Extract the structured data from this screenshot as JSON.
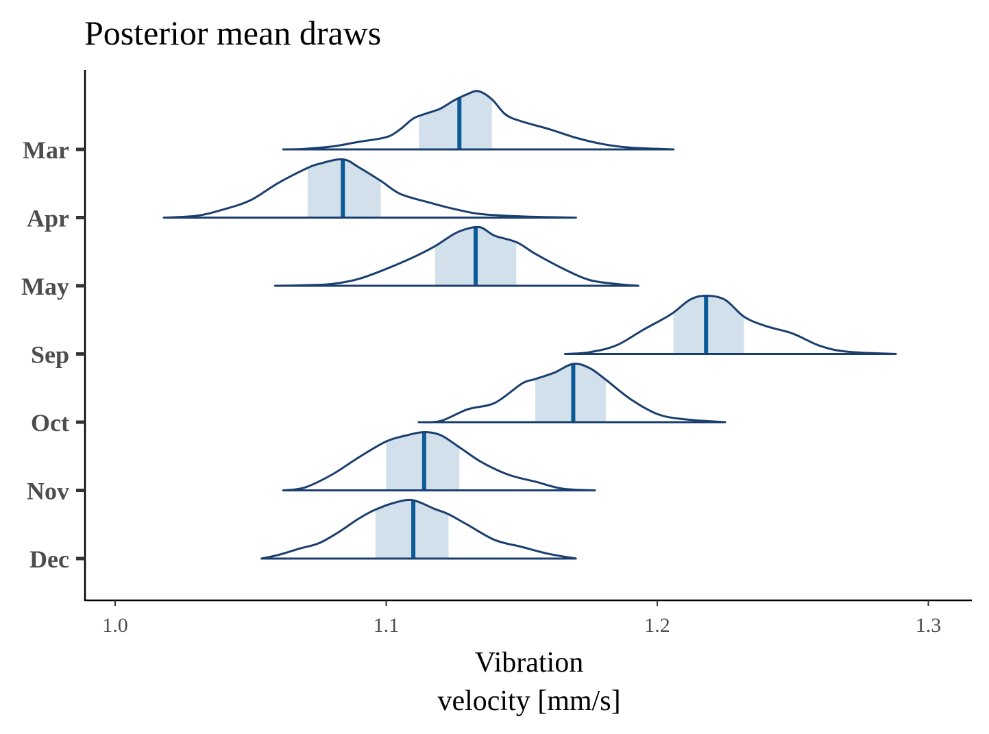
{
  "chart_data": {
    "type": "ridgeline",
    "title": "Posterior mean draws",
    "xlabel": [
      "Vibration",
      "velocity [mm/s]"
    ],
    "ylabel": "",
    "xlim": [
      0.989,
      1.315
    ],
    "xticks": [
      1.0,
      1.1,
      1.2,
      1.3
    ],
    "xtick_labels": [
      "1.0",
      "1.1",
      "1.2",
      "1.3"
    ],
    "grid": false,
    "legend": "none",
    "colors": {
      "outline": "#1a3f6e",
      "interval_fill": "#d1e0eb",
      "median": "#0b5b99",
      "axis": "#000000",
      "tick_label": "#4d4d4d"
    },
    "series": [
      {
        "name": "Mar",
        "x_min": 1.062,
        "x_max": 1.206,
        "median": 1.127,
        "interval": [
          1.112,
          1.139
        ],
        "density": [
          [
            1.062,
            0.0
          ],
          [
            1.07,
            0.01
          ],
          [
            1.08,
            0.05
          ],
          [
            1.09,
            0.13
          ],
          [
            1.1,
            0.21
          ],
          [
            1.105,
            0.34
          ],
          [
            1.11,
            0.53
          ],
          [
            1.115,
            0.62
          ],
          [
            1.12,
            0.7
          ],
          [
            1.125,
            0.84
          ],
          [
            1.13,
            0.95
          ],
          [
            1.134,
            1.0
          ],
          [
            1.139,
            0.86
          ],
          [
            1.144,
            0.6
          ],
          [
            1.15,
            0.48
          ],
          [
            1.16,
            0.35
          ],
          [
            1.17,
            0.2
          ],
          [
            1.18,
            0.09
          ],
          [
            1.19,
            0.03
          ],
          [
            1.206,
            0.0
          ]
        ]
      },
      {
        "name": "Apr",
        "x_min": 1.018,
        "x_max": 1.17,
        "median": 1.084,
        "interval": [
          1.071,
          1.098
        ],
        "density": [
          [
            1.018,
            0.0
          ],
          [
            1.03,
            0.03
          ],
          [
            1.04,
            0.14
          ],
          [
            1.05,
            0.3
          ],
          [
            1.06,
            0.59
          ],
          [
            1.07,
            0.83
          ],
          [
            1.075,
            0.92
          ],
          [
            1.084,
            1.0
          ],
          [
            1.09,
            0.86
          ],
          [
            1.098,
            0.63
          ],
          [
            1.105,
            0.41
          ],
          [
            1.115,
            0.27
          ],
          [
            1.125,
            0.15
          ],
          [
            1.135,
            0.06
          ],
          [
            1.15,
            0.02
          ],
          [
            1.17,
            0.0
          ]
        ]
      },
      {
        "name": "May",
        "x_min": 1.059,
        "x_max": 1.193,
        "median": 1.133,
        "interval": [
          1.118,
          1.148
        ],
        "density": [
          [
            1.059,
            0.0
          ],
          [
            1.07,
            0.01
          ],
          [
            1.08,
            0.03
          ],
          [
            1.09,
            0.12
          ],
          [
            1.1,
            0.29
          ],
          [
            1.11,
            0.49
          ],
          [
            1.118,
            0.68
          ],
          [
            1.125,
            0.89
          ],
          [
            1.13,
            0.98
          ],
          [
            1.135,
            1.0
          ],
          [
            1.14,
            0.86
          ],
          [
            1.148,
            0.75
          ],
          [
            1.155,
            0.55
          ],
          [
            1.165,
            0.3
          ],
          [
            1.175,
            0.1
          ],
          [
            1.185,
            0.03
          ],
          [
            1.193,
            0.0
          ]
        ]
      },
      {
        "name": "Sep",
        "x_min": 1.166,
        "x_max": 1.288,
        "median": 1.218,
        "interval": [
          1.206,
          1.232
        ],
        "density": [
          [
            1.166,
            0.0
          ],
          [
            1.175,
            0.03
          ],
          [
            1.185,
            0.15
          ],
          [
            1.195,
            0.42
          ],
          [
            1.205,
            0.68
          ],
          [
            1.212,
            0.93
          ],
          [
            1.218,
            1.0
          ],
          [
            1.225,
            0.93
          ],
          [
            1.232,
            0.64
          ],
          [
            1.24,
            0.48
          ],
          [
            1.25,
            0.35
          ],
          [
            1.26,
            0.14
          ],
          [
            1.27,
            0.04
          ],
          [
            1.288,
            0.0
          ]
        ]
      },
      {
        "name": "Oct",
        "x_min": 1.112,
        "x_max": 1.225,
        "median": 1.169,
        "interval": [
          1.155,
          1.181
        ],
        "density": [
          [
            1.112,
            0.0
          ],
          [
            1.12,
            0.02
          ],
          [
            1.13,
            0.22
          ],
          [
            1.14,
            0.33
          ],
          [
            1.15,
            0.66
          ],
          [
            1.155,
            0.74
          ],
          [
            1.162,
            0.85
          ],
          [
            1.169,
            1.0
          ],
          [
            1.175,
            0.93
          ],
          [
            1.181,
            0.73
          ],
          [
            1.19,
            0.4
          ],
          [
            1.2,
            0.14
          ],
          [
            1.21,
            0.05
          ],
          [
            1.225,
            0.0
          ]
        ]
      },
      {
        "name": "Nov",
        "x_min": 1.062,
        "x_max": 1.177,
        "median": 1.114,
        "interval": [
          1.1,
          1.127
        ],
        "density": [
          [
            1.062,
            0.0
          ],
          [
            1.07,
            0.05
          ],
          [
            1.08,
            0.27
          ],
          [
            1.09,
            0.57
          ],
          [
            1.1,
            0.84
          ],
          [
            1.108,
            0.95
          ],
          [
            1.114,
            1.0
          ],
          [
            1.12,
            0.95
          ],
          [
            1.127,
            0.74
          ],
          [
            1.135,
            0.49
          ],
          [
            1.145,
            0.27
          ],
          [
            1.155,
            0.15
          ],
          [
            1.165,
            0.03
          ],
          [
            1.177,
            0.0
          ]
        ]
      },
      {
        "name": "Dec",
        "x_min": 1.054,
        "x_max": 1.17,
        "median": 1.11,
        "interval": [
          1.096,
          1.123
        ],
        "density": [
          [
            1.054,
            0.0
          ],
          [
            1.06,
            0.06
          ],
          [
            1.068,
            0.17
          ],
          [
            1.075,
            0.26
          ],
          [
            1.082,
            0.44
          ],
          [
            1.09,
            0.69
          ],
          [
            1.096,
            0.84
          ],
          [
            1.104,
            0.97
          ],
          [
            1.11,
            1.0
          ],
          [
            1.118,
            0.85
          ],
          [
            1.123,
            0.76
          ],
          [
            1.13,
            0.58
          ],
          [
            1.14,
            0.32
          ],
          [
            1.15,
            0.2
          ],
          [
            1.16,
            0.08
          ],
          [
            1.17,
            0.0
          ]
        ]
      }
    ]
  }
}
